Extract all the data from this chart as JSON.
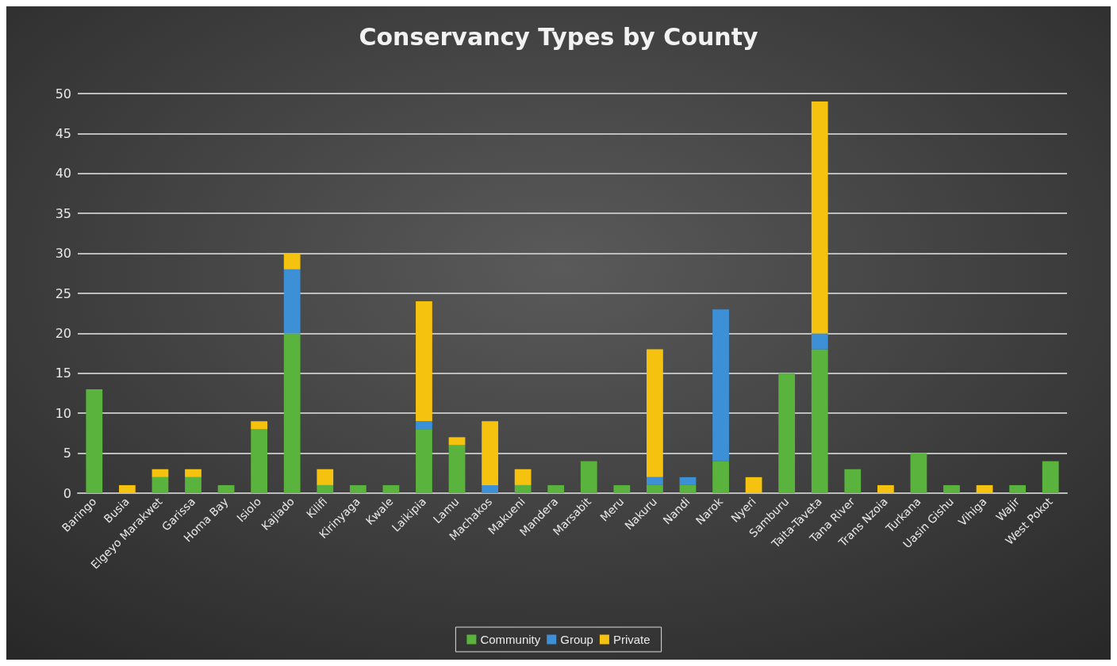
{
  "chart_data": {
    "type": "bar",
    "title": "Conservancy Types by County",
    "stacked": true,
    "categories": [
      "Baringo",
      "Busia",
      "Elgeyo Marakwet",
      "Garissa",
      "Homa Bay",
      "Isiolo",
      "Kajiado",
      "Kilifi",
      "Kirinyaga",
      "Kwale",
      "Laikipia",
      "Lamu",
      "Machakos",
      "Makueni",
      "Mandera",
      "Marsabit",
      "Meru",
      "Nakuru",
      "Nandi",
      "Narok",
      "Nyeri",
      "Samburu",
      "Taita-Taveta",
      "Tana River",
      "Trans Nzoia",
      "Turkana",
      "Uasin Gishu",
      "Vihiga",
      "Wajir",
      "West Pokot"
    ],
    "series": [
      {
        "name": "Community",
        "color": "#5ab33c",
        "values": [
          13,
          0,
          2,
          2,
          1,
          8,
          20,
          1,
          1,
          1,
          8,
          6,
          0,
          1,
          1,
          4,
          1,
          1,
          1,
          4,
          0,
          15,
          18,
          3,
          0,
          5,
          1,
          0,
          1,
          4
        ]
      },
      {
        "name": "Group",
        "color": "#3d8fd6",
        "values": [
          0,
          0,
          0,
          0,
          0,
          0,
          8,
          0,
          0,
          0,
          1,
          0,
          1,
          0,
          0,
          0,
          0,
          1,
          1,
          19,
          0,
          0,
          2,
          0,
          0,
          0,
          0,
          0,
          0,
          0
        ]
      },
      {
        "name": "Private",
        "color": "#f5c20f",
        "values": [
          0,
          1,
          1,
          1,
          0,
          1,
          2,
          2,
          0,
          0,
          15,
          1,
          8,
          2,
          0,
          0,
          0,
          16,
          0,
          0,
          2,
          0,
          29,
          0,
          1,
          0,
          0,
          1,
          0,
          0
        ]
      }
    ],
    "ylim": [
      0,
      50
    ],
    "yticks": [
      0,
      5,
      10,
      15,
      20,
      25,
      30,
      35,
      40,
      45,
      50
    ],
    "grid": "y",
    "legend": "bottom"
  }
}
